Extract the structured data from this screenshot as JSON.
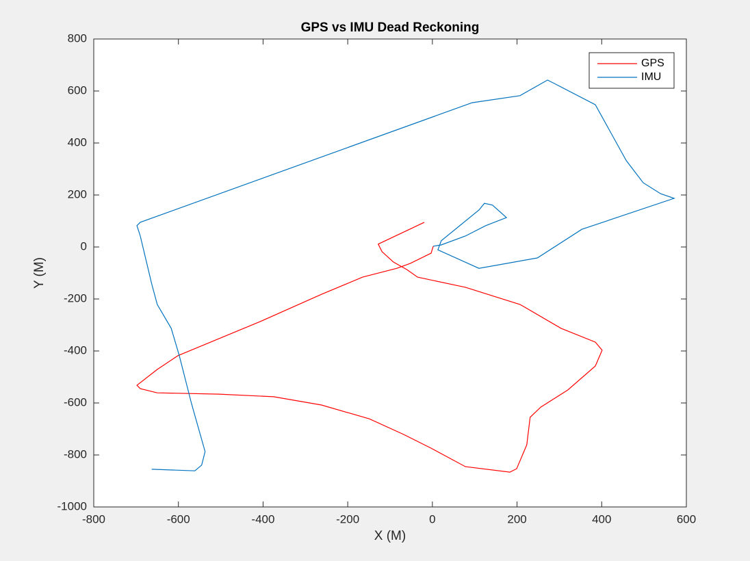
{
  "chart_data": {
    "type": "line",
    "title": "GPS vs IMU Dead Reckoning",
    "x_label": "X (M)",
    "y_label": "Y (M)",
    "xlim": [
      -800,
      600
    ],
    "ylim": [
      -1000,
      800
    ],
    "xticks": [
      -800,
      -600,
      -400,
      -200,
      0,
      200,
      400,
      600
    ],
    "yticks": [
      -1000,
      -800,
      -600,
      -400,
      -200,
      0,
      200,
      400,
      600,
      800
    ],
    "legend": "northeast",
    "box": true,
    "series": [
      {
        "name": "GPS",
        "color": "#ff0000",
        "x": [
          -19,
          -128,
          -119,
          -92,
          -60,
          -35,
          78,
          207,
          304,
          385,
          401,
          385,
          320,
          256,
          231,
          223,
          199,
          183,
          78,
          -3,
          -68,
          -149,
          -262,
          -375,
          -504,
          -650,
          -690,
          -698,
          -650,
          -601,
          -407,
          -262,
          -165,
          -84,
          -52,
          -3,
          2
        ],
        "values": [
          95,
          11,
          -18,
          -58,
          -87,
          -116,
          -155,
          -221,
          -313,
          -366,
          -397,
          -458,
          -550,
          -616,
          -655,
          -761,
          -853,
          -866,
          -845,
          -774,
          -721,
          -661,
          -608,
          -576,
          -566,
          -561,
          -545,
          -532,
          -471,
          -418,
          -287,
          -182,
          -116,
          -82,
          -63,
          -24,
          3
        ]
      },
      {
        "name": "IMU",
        "color": "#0072bd",
        "x": [
          -663,
          -561,
          -545,
          -537,
          -569,
          -598,
          -617,
          -650,
          -663,
          -690,
          -698,
          -690,
          94,
          207,
          272,
          288,
          385,
          458,
          498,
          539,
          571,
          353,
          248,
          110,
          13,
          21,
          110,
          123,
          142,
          175,
          126,
          78,
          21,
          2
        ],
        "values": [
          -855,
          -861,
          -839,
          -787,
          -603,
          -418,
          -313,
          -221,
          -142,
          42,
          82,
          95,
          555,
          582,
          642,
          629,
          547,
          332,
          247,
          205,
          187,
          68,
          -42,
          -82,
          -11,
          24,
          142,
          168,
          161,
          113,
          82,
          42,
          8,
          3
        ]
      }
    ]
  }
}
